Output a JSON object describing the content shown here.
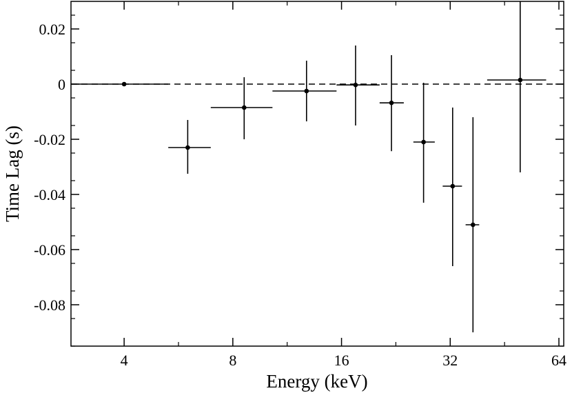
{
  "chart_data": {
    "type": "scatter",
    "title": "",
    "xlabel": "Energy (keV)",
    "ylabel": "Time Lag (s)",
    "x_scale": "log2",
    "xlim": [
      2.85,
      66
    ],
    "ylim": [
      -0.095,
      0.03
    ],
    "x_ticks": [
      4,
      8,
      16,
      32,
      64
    ],
    "x_tick_labels": [
      "4",
      "8",
      "16",
      "32",
      "64"
    ],
    "y_ticks": [
      0.02,
      0,
      -0.02,
      -0.04,
      -0.06,
      -0.08
    ],
    "y_tick_labels": [
      "0.02",
      "0",
      "-0.02",
      "-0.04",
      "-0.06",
      "-0.08"
    ],
    "reference_line": {
      "y": 0,
      "style": "dashed"
    },
    "grid": false,
    "series": [
      {
        "points": [
          {
            "x": 4.0,
            "y": 0.0,
            "x_lo": 2.85,
            "x_hi": 5.3,
            "y_lo": 0.0,
            "y_hi": 0.0
          },
          {
            "x": 6.0,
            "y": -0.023,
            "x_lo": 5.3,
            "x_hi": 6.95,
            "y_lo": -0.0325,
            "y_hi": -0.013
          },
          {
            "x": 8.6,
            "y": -0.0085,
            "x_lo": 6.95,
            "x_hi": 10.3,
            "y_lo": -0.02,
            "y_hi": 0.0025
          },
          {
            "x": 12.8,
            "y": -0.0025,
            "x_lo": 10.3,
            "x_hi": 15.5,
            "y_lo": -0.0135,
            "y_hi": 0.0085
          },
          {
            "x": 17.5,
            "y": -0.0003,
            "x_lo": 15.5,
            "x_hi": 20.4,
            "y_lo": -0.015,
            "y_hi": 0.014
          },
          {
            "x": 22.0,
            "y": -0.0068,
            "x_lo": 20.4,
            "x_hi": 23.8,
            "y_lo": -0.0243,
            "y_hi": 0.0105
          },
          {
            "x": 27.0,
            "y": -0.021,
            "x_lo": 25.3,
            "x_hi": 29.0,
            "y_lo": -0.043,
            "y_hi": 0.0005
          },
          {
            "x": 32.5,
            "y": -0.037,
            "x_lo": 30.5,
            "x_hi": 34.5,
            "y_lo": -0.066,
            "y_hi": -0.0085
          },
          {
            "x": 37.0,
            "y": -0.051,
            "x_lo": 35.3,
            "x_hi": 38.5,
            "y_lo": -0.09,
            "y_hi": -0.012
          },
          {
            "x": 50.0,
            "y": 0.0015,
            "x_lo": 40.5,
            "x_hi": 59.0,
            "y_lo": -0.032,
            "y_hi": 0.03
          }
        ]
      }
    ]
  }
}
